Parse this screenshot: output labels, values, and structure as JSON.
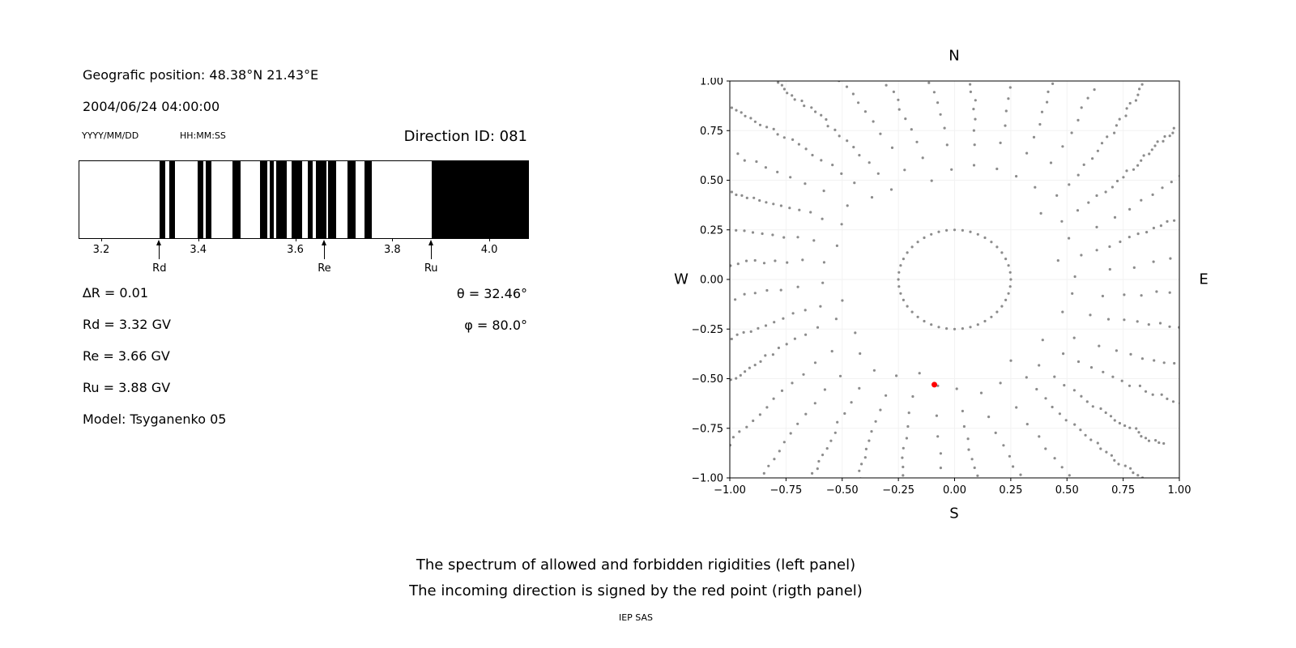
{
  "left_panel": {
    "geo_position": "Geografic position: 48.38°N 21.43°E",
    "datetime": "2004/06/24 04:00:00",
    "date_format": "YYYY/MM/DD",
    "time_format": "HH:MM:SS",
    "direction_id": "Direction ID: 081",
    "delta_r": "∆R = 0.01",
    "rd": "Rd = 3.32 GV",
    "re": "Re = 3.66 GV",
    "ru": "Ru = 3.88 GV",
    "model": "Model: Tsyganenko 05",
    "theta": "θ = 32.46°",
    "phi": "φ = 80.0°"
  },
  "right_panel": {
    "labels": {
      "north": "N",
      "south": "S",
      "east": "E",
      "west": "W"
    }
  },
  "caption": {
    "line1": "The spectrum of allowed and forbidden rigidities (left panel)",
    "line2": "The incoming direction is signed by the red point (rigth panel)",
    "credit": "IEP SAS"
  },
  "chart_data": [
    {
      "type": "bar",
      "name": "rigidity-spectrum",
      "xlim": [
        3.155,
        4.08
      ],
      "xticks": [
        3.2,
        3.4,
        3.6,
        3.8,
        4.0
      ],
      "bar_color": "#000000",
      "forbidden_bands_gv": [
        [
          3.32,
          3.332
        ],
        [
          3.341,
          3.352
        ],
        [
          3.398,
          3.41
        ],
        [
          3.416,
          3.428
        ],
        [
          3.47,
          3.488
        ],
        [
          3.528,
          3.542
        ],
        [
          3.548,
          3.556
        ],
        [
          3.56,
          3.582
        ],
        [
          3.592,
          3.614
        ],
        [
          3.626,
          3.636
        ],
        [
          3.642,
          3.664
        ],
        [
          3.668,
          3.684
        ],
        [
          3.708,
          3.724
        ],
        [
          3.742,
          3.758
        ],
        [
          3.882,
          4.08
        ]
      ],
      "markers": [
        {
          "label": "Rd",
          "value": 3.32
        },
        {
          "label": "Re",
          "value": 3.66
        },
        {
          "label": "Ru",
          "value": 3.88
        }
      ]
    },
    {
      "type": "scatter",
      "name": "incoming-direction-map",
      "xlim": [
        -1.0,
        1.0
      ],
      "ylim": [
        -1.0,
        1.0
      ],
      "xticks": [
        -1.0,
        -0.75,
        -0.5,
        -0.25,
        0.0,
        0.25,
        0.5,
        0.75,
        1.0
      ],
      "yticks": [
        -1.0,
        -0.75,
        -0.5,
        -0.25,
        0.0,
        0.25,
        0.5,
        0.75,
        1.0
      ],
      "grid": true,
      "dot_color": "#8c8c8c",
      "red_color": "#ff0000",
      "red_point": [
        -0.09,
        -0.53
      ],
      "pattern": {
        "n_rays": 36,
        "ring_radius": 0.25,
        "ring_points": 44,
        "ray_r_start": 0.32,
        "ray_r_end": 1.5,
        "points_per_ray": 22,
        "radial_exponent": 0.5,
        "curvature_deg_per_unit": 10,
        "jitter_deg": 1.2
      }
    }
  ]
}
